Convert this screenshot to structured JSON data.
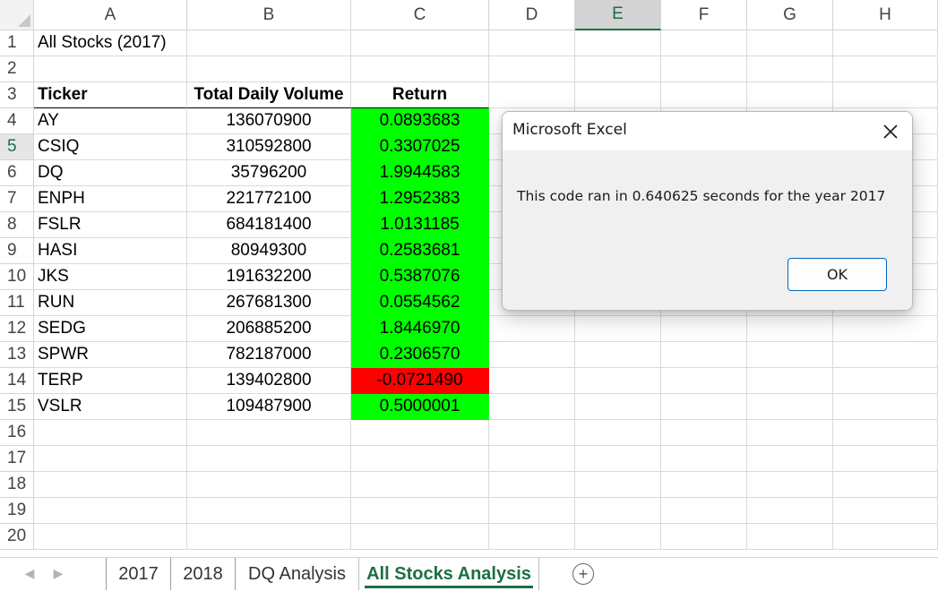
{
  "columns": [
    "A",
    "B",
    "C",
    "D",
    "E",
    "F",
    "G",
    "H"
  ],
  "selected_column": "E",
  "selected_row": 5,
  "rows": [
    "1",
    "2",
    "3",
    "4",
    "5",
    "6",
    "7",
    "8",
    "9",
    "10",
    "11",
    "12",
    "13",
    "14",
    "15",
    "16",
    "17",
    "18",
    "19",
    "20"
  ],
  "sheet": {
    "title": "All Stocks (2017)",
    "headers": {
      "ticker": "Ticker",
      "volume": "Total Daily Volume",
      "return": "Return"
    },
    "data": [
      {
        "ticker": "AY",
        "volume": "136070900",
        "return": "0.0893683",
        "positive": true
      },
      {
        "ticker": "CSIQ",
        "volume": "310592800",
        "return": "0.3307025",
        "positive": true
      },
      {
        "ticker": "DQ",
        "volume": "35796200",
        "return": "1.9944583",
        "positive": true
      },
      {
        "ticker": "ENPH",
        "volume": "221772100",
        "return": "1.2952383",
        "positive": true
      },
      {
        "ticker": "FSLR",
        "volume": "684181400",
        "return": "1.0131185",
        "positive": true
      },
      {
        "ticker": "HASI",
        "volume": "80949300",
        "return": "0.2583681",
        "positive": true
      },
      {
        "ticker": "JKS",
        "volume": "191632200",
        "return": "0.5387076",
        "positive": true
      },
      {
        "ticker": "RUN",
        "volume": "267681300",
        "return": "0.0554562",
        "positive": true
      },
      {
        "ticker": "SEDG",
        "volume": "206885200",
        "return": "1.8446970",
        "positive": true
      },
      {
        "ticker": "SPWR",
        "volume": "782187000",
        "return": "0.2306570",
        "positive": true
      },
      {
        "ticker": "TERP",
        "volume": "139402800",
        "return": "-0.0721490",
        "positive": false
      },
      {
        "ticker": "VSLR",
        "volume": "109487900",
        "return": "0.5000001",
        "positive": true
      }
    ]
  },
  "colors": {
    "positive_fill": "#00ff00",
    "negative_fill": "#ff0000",
    "accent_green": "#1e6e42",
    "ok_border": "#0067c0"
  },
  "tabs": [
    {
      "label": "2017",
      "active": false
    },
    {
      "label": "2018",
      "active": false
    },
    {
      "label": "DQ Analysis",
      "active": false
    },
    {
      "label": "All Stocks Analysis",
      "active": true
    }
  ],
  "tabbar": {
    "prev_icon": "chevron-left-icon",
    "next_icon": "chevron-right-icon",
    "add_icon": "plus-circle-icon",
    "add_symbol": "+"
  },
  "dialog": {
    "title": "Microsoft Excel",
    "message": "This code ran in 0.640625 seconds for the year 2017",
    "ok_label": "OK",
    "close_symbol": "✕"
  }
}
